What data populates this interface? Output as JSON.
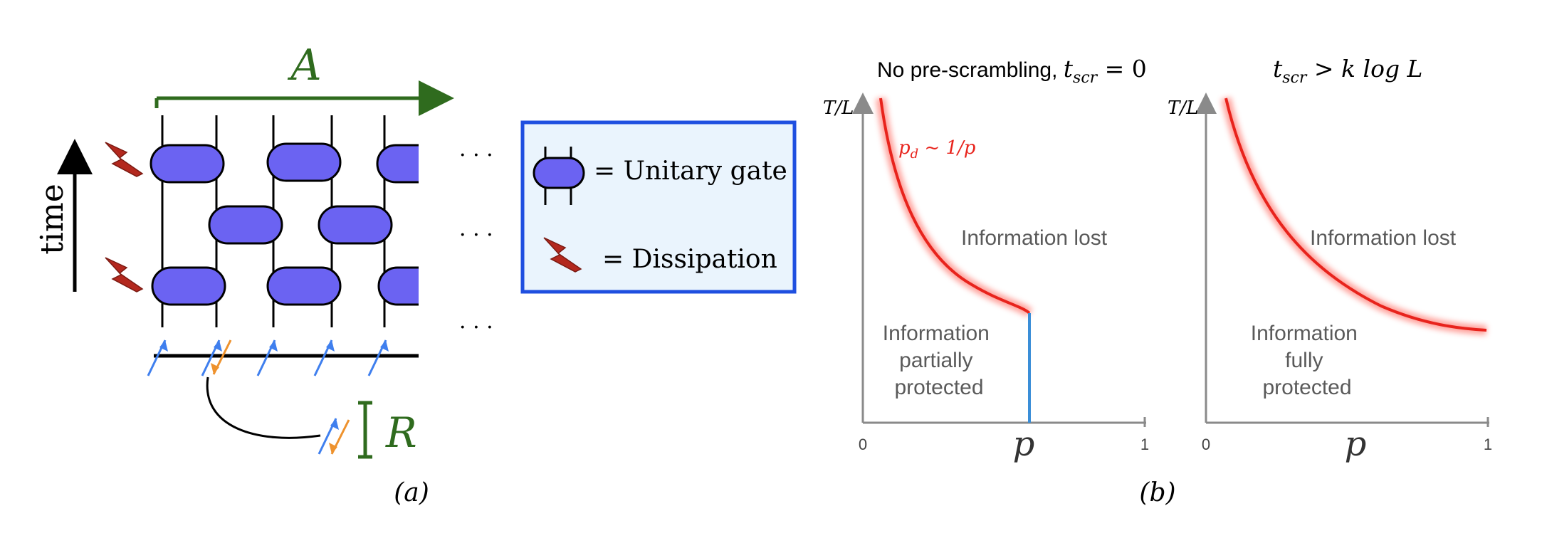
{
  "panel_a": {
    "subsystem_A_label": "A",
    "subsystem_R_label": "R",
    "time_label": "time",
    "ellipsis": "· · ·",
    "caption": "(a)",
    "legend": {
      "gate_text": "= Unitary gate",
      "dissipation_text": "= Dissipation"
    },
    "colors": {
      "gate_fill": "#6b63f2",
      "dissipation": "#b3281e",
      "subsystem_green": "#2f6b1e",
      "qubit_blue": "#3f7fee",
      "qubit_orange": "#ee922d",
      "legend_border": "#1f4fe0",
      "legend_bg": "#eaf4fd"
    },
    "icons": [
      "time-arrow-icon",
      "dissipation-bolt-icon",
      "unitary-gate-icon",
      "spin-up-arrow-icon",
      "spin-down-arrow-icon",
      "entanglement-link-icon"
    ]
  },
  "panel_b": {
    "caption": "(b)",
    "left": {
      "title_plain": "No pre-scrambling, ",
      "title_math": "t",
      "title_sub": "scr",
      "title_tail": " = 0",
      "ylabel": "T/L",
      "xlabel": "p",
      "x_tick_0": "0",
      "x_tick_1": "1",
      "curve_label_main": "p",
      "curve_label_sub": "d",
      "curve_label_tail": " ~ 1/p",
      "region_lost": "Information lost",
      "region_protected_lines": [
        "Information",
        "partially",
        "protected"
      ]
    },
    "right": {
      "title_math": "t",
      "title_sub": "scr",
      "title_tail": " > k log L",
      "ylabel": "T/L",
      "xlabel": "p",
      "x_tick_0": "0",
      "x_tick_1": "1",
      "region_lost": "Information lost",
      "region_protected_lines": [
        "Information",
        "fully",
        "protected"
      ]
    },
    "colors": {
      "axis": "#8a8a8a",
      "curve": "#e8231c",
      "vertical_boundary": "#3a8ed8",
      "region_text": "#5a5a5a"
    }
  }
}
